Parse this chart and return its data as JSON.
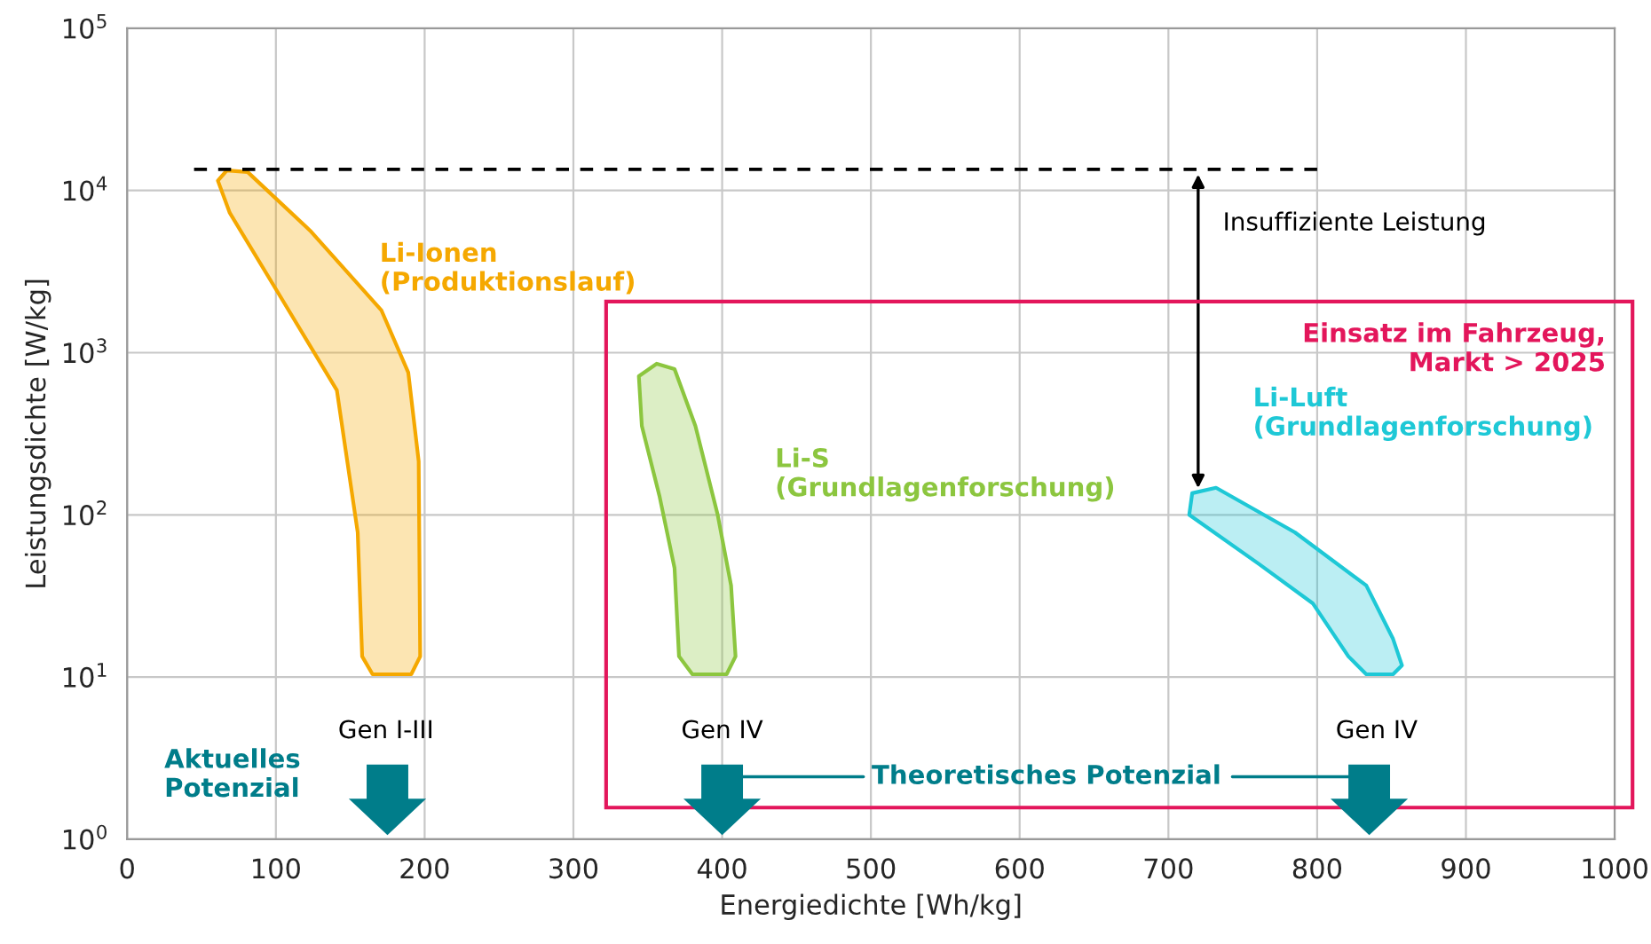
{
  "chart_data": {
    "type": "area",
    "xlabel": "Energiedichte [Wh/kg]",
    "ylabel": "Leistungsdichte [W/kg]",
    "log": "y",
    "grid": true,
    "xlim": [
      0,
      1000
    ],
    "xticks": [
      0,
      100,
      200,
      300,
      400,
      500,
      600,
      700,
      800,
      900,
      1000
    ],
    "ylim": [
      1,
      100000
    ],
    "yticks": [
      {
        "value": 1,
        "label": "10$^{0}$"
      },
      {
        "value": 10,
        "label": "10$^{1}$"
      },
      {
        "value": 100,
        "label": "10$^{2}$"
      },
      {
        "value": 1000,
        "label": "10$^{3}$"
      },
      {
        "value": 10000,
        "label": "10$^{4}$"
      },
      {
        "value": 100000,
        "label": "10$^{5}$"
      }
    ],
    "series": [
      {
        "name": "Li-Ionen\n(Produktionslauf)",
        "color": "#f5a800",
        "x": [
          67,
          81,
          123,
          171,
          189,
          196,
          197,
          191,
          165,
          158,
          155,
          141,
          105,
          69,
          61
        ],
        "values": [
          13300,
          13000,
          5660,
          1820,
          754,
          214,
          13.4,
          10.4,
          10.4,
          13.4,
          78,
          586,
          2070,
          7280,
          11500
        ]
      },
      {
        "name": "Li-S\n(Grundlagenforschung)",
        "color": "#8cc63f",
        "x": [
          356,
          368,
          382,
          397,
          406,
          409,
          403,
          380,
          371,
          368,
          358,
          346,
          344
        ],
        "values": [
          855,
          792,
          354,
          100,
          36.7,
          13.4,
          10.4,
          10.4,
          13.4,
          47,
          129,
          354,
          717
        ]
      },
      {
        "name": "Li-Luft\n(Grundlagenforschung)",
        "color": "#1ec8d6",
        "x": [
          716,
          732,
          785,
          833,
          851,
          857,
          851,
          833,
          821,
          797,
          761,
          714
        ],
        "values": [
          136,
          147,
          78,
          36.7,
          17.2,
          11.8,
          10.4,
          10.4,
          13.4,
          28.5,
          49.7,
          100
        ]
      },
      {
        "type": "line",
        "color": "#000000",
        "line_style": "dashed",
        "x": [
          45,
          800
        ],
        "values": [
          13500,
          13500
        ]
      }
    ],
    "annotations": [
      {
        "text": "Insuffiziente Leistung",
        "x": 720,
        "y": 13500
      },
      "Einsatz im Fahrzeug,\nMarkt > 2025",
      "Gen I-III",
      "Gen IV",
      "Gen IV",
      "Aktuelles\nPotenzial",
      "Theoretisches Potenzial"
    ]
  }
}
